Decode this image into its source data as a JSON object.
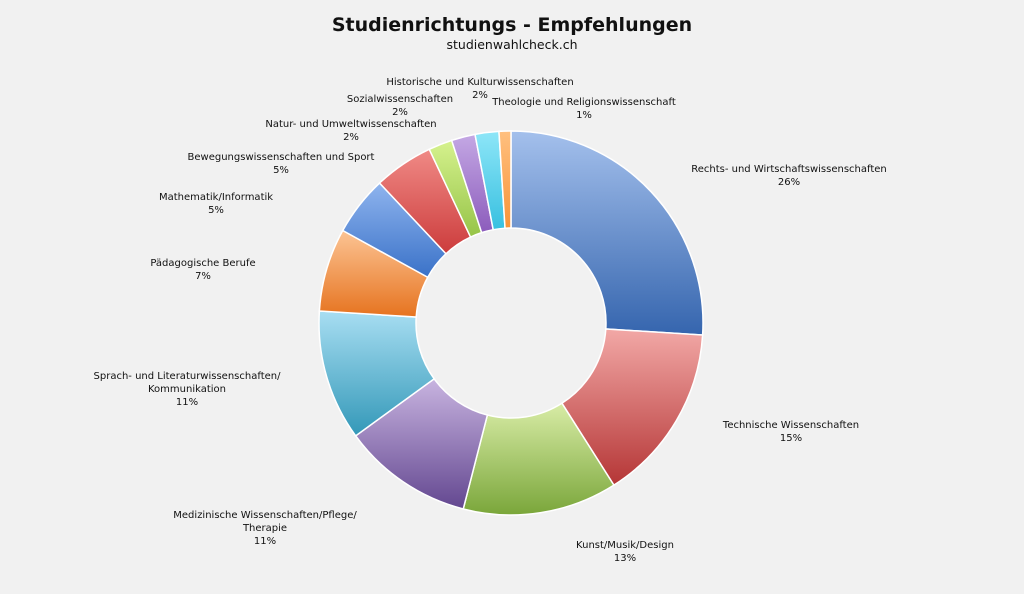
{
  "chart_data": {
    "type": "pie",
    "subtype": "donut",
    "title": "Studienrichtungs - Empfehlungen",
    "subtitle": "studienwahlcheck.ch",
    "slices": [
      {
        "label": "Rechts- und Wirtschaftswissenschaften",
        "pct": "26%",
        "value": 26,
        "color_light": "#a4c0ec",
        "color_dark": "#3565ae"
      },
      {
        "label": "Technische Wissenschaften",
        "pct": "15%",
        "value": 15,
        "color_light": "#f2a8a6",
        "color_dark": "#b53636"
      },
      {
        "label": "Kunst/Musik/Design",
        "pct": "13%",
        "value": 13,
        "color_light": "#d8eca6",
        "color_dark": "#7aa63a"
      },
      {
        "label": "Medizinische Wissenschaften/Pflege/ Therapie",
        "pct": "11%",
        "value": 11,
        "color_light": "#c8b4e0",
        "color_dark": "#634790"
      },
      {
        "label": "Sprach- und Literaturwissenschaften/ Kommunikation",
        "pct": "11%",
        "value": 11,
        "color_light": "#a8def2",
        "color_dark": "#3398b8"
      },
      {
        "label": "Pädagogische Berufe",
        "pct": "7%",
        "value": 7,
        "color_light": "#fcc494",
        "color_dark": "#e6731f"
      },
      {
        "label": "Mathematik/Informatik",
        "pct": "5%",
        "value": 5,
        "color_light": "#8fb4ee",
        "color_dark": "#3a72c8"
      },
      {
        "label": "Bewegungswissenschaften und Sport",
        "pct": "5%",
        "value": 5,
        "color_light": "#f08a86",
        "color_dark": "#cc3c3c"
      },
      {
        "label": "Natur- und Umweltwissenschaften",
        "pct": "2%",
        "value": 2,
        "color_light": "#d6f28e",
        "color_dark": "#96c448"
      },
      {
        "label": "Sozialwissenschaften",
        "pct": "2%",
        "value": 2,
        "color_light": "#c4a8e4",
        "color_dark": "#8c5cbc"
      },
      {
        "label": "Historische und Kulturwissenschaften",
        "pct": "2%",
        "value": 2,
        "color_light": "#8ee6f8",
        "color_dark": "#38c0e0"
      },
      {
        "label": "Theologie und Religionswissenschaft",
        "pct": "1%",
        "value": 1,
        "color_light": "#ffc080",
        "color_dark": "#f89438"
      }
    ]
  }
}
